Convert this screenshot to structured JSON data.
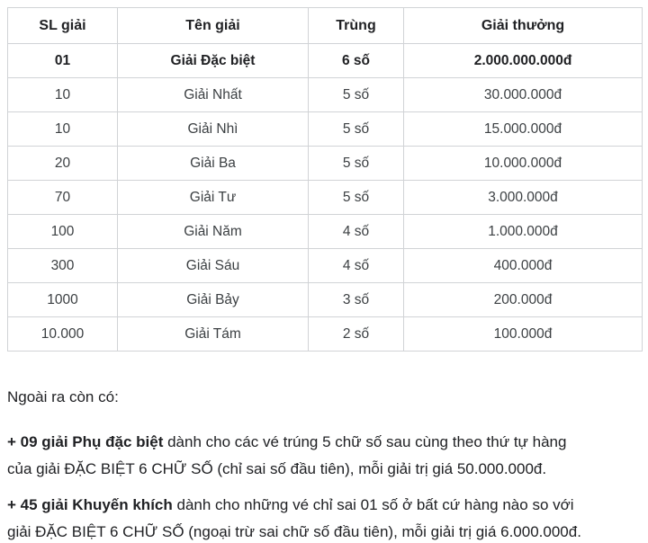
{
  "table": {
    "headers": [
      "SL giải",
      "Tên giải",
      "Trùng",
      "Giải thưởng"
    ],
    "rows": [
      {
        "qty": "01",
        "name": "Giải Đặc biệt",
        "match": "6 số",
        "prize": "2.000.000.000đ"
      },
      {
        "qty": "10",
        "name": "Giải Nhất",
        "match": "5 số",
        "prize": "30.000.000đ"
      },
      {
        "qty": "10",
        "name": "Giải Nhì",
        "match": "5 số",
        "prize": "15.000.000đ"
      },
      {
        "qty": "20",
        "name": "Giải Ba",
        "match": "5 số",
        "prize": "10.000.000đ"
      },
      {
        "qty": "70",
        "name": "Giải Tư",
        "match": "5 số",
        "prize": "3.000.000đ"
      },
      {
        "qty": "100",
        "name": "Giải Năm",
        "match": "4 số",
        "prize": "1.000.000đ"
      },
      {
        "qty": "300",
        "name": "Giải Sáu",
        "match": "4 số",
        "prize": "400.000đ"
      },
      {
        "qty": "1000",
        "name": "Giải Bảy",
        "match": "3 số",
        "prize": "200.000đ"
      },
      {
        "qty": "10.000",
        "name": "Giải Tám",
        "match": "2 số",
        "prize": "100.000đ"
      }
    ]
  },
  "notes": {
    "intro": "Ngoài ra còn có:",
    "paragraphs": [
      {
        "lead": "+ 09 giải Phụ đặc biệt",
        "rest": " dành cho các vé trúng 5 chữ số sau cùng theo thứ tự hàng\ncủa giải ĐẶC BIỆT 6 CHỮ SỐ (chỉ sai số đầu tiên), mỗi giải trị giá 50.000.000đ."
      },
      {
        "lead": "+ 45 giải Khuyến khích",
        "rest": " dành cho những vé chỉ sai 01 số ở bất cứ hàng nào so với\ngiải ĐẶC BIỆT 6 CHỮ SỐ (ngoại trừ sai chữ số đầu tiên), mỗi giải trị giá 6.000.000đ."
      }
    ]
  },
  "colors": {
    "table_border": "#d1d3d6",
    "header_text": "#202124",
    "cell_text": "#3c4043",
    "body_text": "#202124",
    "background": "#ffffff"
  }
}
